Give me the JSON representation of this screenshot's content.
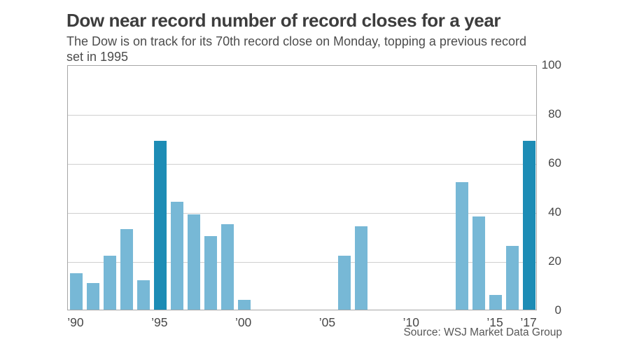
{
  "header": {
    "title": "Dow near record number of record closes for a year",
    "subtitle": "The Dow is on track for its 70th record close on Monday, topping a previous record set in 1995",
    "subtitle_lines": [
      "The Dow is on track for its 70th record close on Monday, topping a previous record",
      "set in 1995"
    ]
  },
  "source": "Source: WSJ Market Data Group",
  "chart_data": {
    "type": "bar",
    "title": "Dow near record number of record closes for a year",
    "subtitle": "The Dow is on track for its 70th record close on Monday, topping a previous record set in 1995",
    "xlabel": "",
    "ylabel": "",
    "x": [
      1990,
      1991,
      1992,
      1993,
      1994,
      1995,
      1996,
      1997,
      1998,
      1999,
      2000,
      2001,
      2002,
      2003,
      2004,
      2005,
      2006,
      2007,
      2008,
      2009,
      2010,
      2011,
      2012,
      2013,
      2014,
      2015,
      2016,
      2017
    ],
    "values": [
      15,
      11,
      22,
      33,
      12,
      69,
      44,
      39,
      30,
      35,
      4,
      0,
      0,
      0,
      0,
      0,
      22,
      34,
      0,
      0,
      0,
      0,
      0,
      52,
      38,
      6,
      26,
      69
    ],
    "highlight_x": [
      1995,
      2017
    ],
    "ylim": [
      0,
      100
    ],
    "yticks": [
      0,
      20,
      40,
      60,
      80,
      100
    ],
    "xticks": [
      {
        "index": 0,
        "label": "’90"
      },
      {
        "index": 5,
        "label": "’95"
      },
      {
        "index": 10,
        "label": "’00"
      },
      {
        "index": 15,
        "label": "’05"
      },
      {
        "index": 20,
        "label": "’10"
      },
      {
        "index": 25,
        "label": "’15"
      },
      {
        "index": 27,
        "label": "’17"
      }
    ],
    "grid": true,
    "y_axis_side": "right",
    "legend": "none",
    "colors": {
      "bar": "#77b8d6",
      "bar_highlight": "#1d8cb5",
      "gridline": "#cfcfcf",
      "plot_border": "#a6a6a6"
    }
  }
}
